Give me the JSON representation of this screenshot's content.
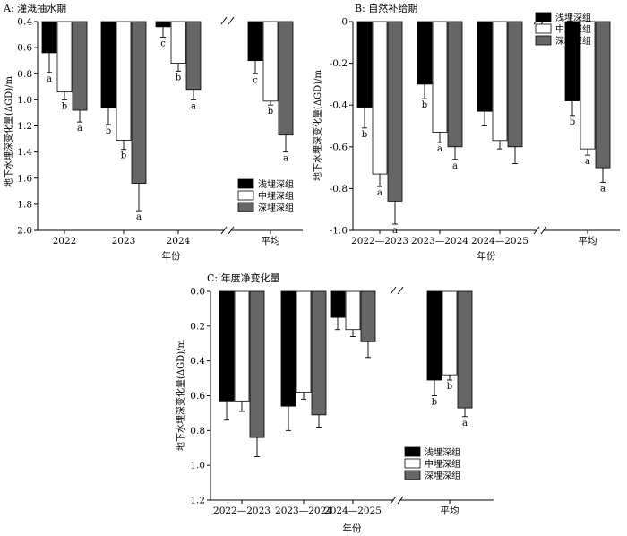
{
  "colors": {
    "shallow": "#000000",
    "middle": "#ffffff",
    "deep": "#666666"
  },
  "ylabel": "地下水埋深变化量(ΔGD)/m",
  "xlabel": "年份",
  "legend": [
    "浅埋深组",
    "中埋深组",
    "深埋深组"
  ],
  "chart_data": [
    {
      "type": "bar",
      "title": "A: 灌溉抽水期",
      "categories": [
        "2022",
        "2023",
        "2024",
        "平均"
      ],
      "ylim": [
        0.4,
        2.0
      ],
      "y_inverted": true,
      "yticks": [
        "0.4",
        "0.6",
        "0.8",
        "1.0",
        "1.2",
        "1.4",
        "1.6",
        "1.8",
        "2.0"
      ],
      "legend_position": "bottom-right",
      "series": [
        {
          "name": "浅埋深组",
          "values": [
            0.64,
            1.06,
            0.44,
            0.7
          ],
          "errors": [
            0.15,
            0.13,
            0.08,
            0.1
          ],
          "letters": [
            "a",
            "b",
            "c",
            "c"
          ]
        },
        {
          "name": "中埋深组",
          "values": [
            0.94,
            1.31,
            0.72,
            1.01
          ],
          "errors": [
            0.06,
            0.07,
            0.06,
            0.03
          ],
          "letters": [
            "b",
            "b",
            "b",
            "b"
          ]
        },
        {
          "name": "深埋深组",
          "values": [
            1.08,
            1.64,
            0.92,
            1.27
          ],
          "errors": [
            0.09,
            0.21,
            0.08,
            0.13
          ],
          "letters": [
            "a",
            "a",
            "a",
            "a"
          ]
        }
      ]
    },
    {
      "type": "bar",
      "title": "B: 自然补给期",
      "categories": [
        "2022—2023",
        "2023—2024",
        "2024—2025",
        "平均"
      ],
      "ylim": [
        0,
        -1.0
      ],
      "y_inverted": false,
      "yticks": [
        "0",
        "-0.2",
        "-0.4",
        "-0.6",
        "-0.8",
        "-1.0"
      ],
      "legend_position": "top-left",
      "series": [
        {
          "name": "浅埋深组",
          "values": [
            -0.41,
            -0.3,
            -0.43,
            -0.38
          ],
          "errors": [
            0.1,
            0.07,
            0.07,
            0.07
          ],
          "letters": [
            "b",
            "b",
            "",
            "b"
          ]
        },
        {
          "name": "中埋深组",
          "values": [
            -0.73,
            -0.53,
            -0.57,
            -0.61
          ],
          "errors": [
            0.06,
            0.05,
            0.04,
            0.03
          ],
          "letters": [
            "a",
            "a",
            "",
            "a"
          ]
        },
        {
          "name": "深埋深组",
          "values": [
            -0.86,
            -0.6,
            -0.6,
            -0.7
          ],
          "errors": [
            0.11,
            0.06,
            0.08,
            0.07
          ],
          "letters": [
            "a",
            "a",
            "",
            "a"
          ]
        }
      ]
    },
    {
      "type": "bar",
      "title": "C: 年度净变化量",
      "categories": [
        "2022—2023",
        "2023—2024",
        "2024—2025",
        "平均"
      ],
      "ylim": [
        0,
        1.2
      ],
      "y_inverted": true,
      "yticks": [
        "0.0",
        "0.2",
        "0.4",
        "0.6",
        "0.8",
        "1.0",
        "1.2"
      ],
      "legend_position": "bottom-right",
      "series": [
        {
          "name": "浅埋深组",
          "values": [
            0.63,
            0.66,
            0.15,
            0.51
          ],
          "errors": [
            0.11,
            0.14,
            0.07,
            0.09
          ],
          "letters": [
            "",
            "",
            "",
            "b"
          ]
        },
        {
          "name": "中埋深组",
          "values": [
            0.63,
            0.58,
            0.22,
            0.48
          ],
          "errors": [
            0.06,
            0.04,
            0.04,
            0.03
          ],
          "letters": [
            "",
            "",
            "",
            "b"
          ]
        },
        {
          "name": "深埋深组",
          "values": [
            0.84,
            0.71,
            0.29,
            0.67
          ],
          "errors": [
            0.11,
            0.07,
            0.09,
            0.05
          ],
          "letters": [
            "",
            "",
            "",
            "a"
          ]
        }
      ]
    }
  ]
}
